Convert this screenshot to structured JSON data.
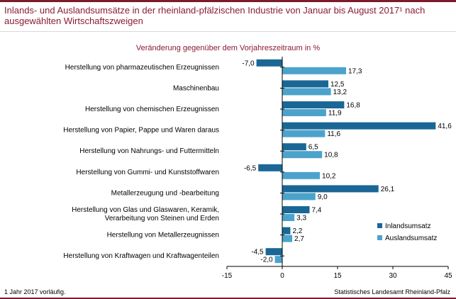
{
  "title": "Inlands- und Auslandsumsätze in der rheinland-pfälzischen Industrie von Januar bis August 2017¹ nach ausgewählten Wirtschaftszweigen",
  "footnote": "1 Jahr 2017 vorläufig.",
  "source": "Statistisches Landesamt Rheinland-Pfalz",
  "colors": {
    "title": "#8b1a33",
    "inland": "#1a6796",
    "ausland": "#4ba3cc"
  },
  "chart_data": {
    "type": "bar",
    "orientation": "horizontal",
    "subtitle": "Veränderung gegenüber dem Vorjahreszeitraum in %",
    "categories": [
      "Herstellung von pharmazeutischen Erzeugnissen",
      "Maschinenbau",
      "Herstellung von chemischen Erzeugnissen",
      "Herstellung von Papier, Pappe und Waren daraus",
      "Herstellung von Nahrungs- und Futtermitteln",
      "Herstellung von Gummi- und Kunststoffwaren",
      "Metallerzeugung und -bearbeitung",
      "Herstellung von Glas und Glaswaren, Keramik, Verarbeitung von Steinen und Erden",
      "Herstellung von Metallerzeugnissen",
      "Herstellung von Kraftwagen und Kraftwagenteilen"
    ],
    "series": [
      {
        "name": "Inlandsumsatz",
        "values": [
          -7.0,
          12.5,
          16.8,
          41.6,
          6.5,
          -6.5,
          26.1,
          7.4,
          2.2,
          -4.5
        ],
        "labels": [
          "-7,0",
          "12,5",
          "16,8",
          "41,6",
          "6,5",
          "-6,5",
          "26,1",
          "7,4",
          "2,2",
          "-4,5"
        ]
      },
      {
        "name": "Auslandsumsatz",
        "values": [
          17.3,
          13.2,
          11.9,
          11.6,
          10.8,
          10.2,
          9.0,
          3.3,
          2.7,
          -2.0
        ],
        "labels": [
          "17,3",
          "13,2",
          "11,9",
          "11,6",
          "10,8",
          "10,2",
          "9,0",
          "3,3",
          "2,7",
          "-2,0"
        ]
      }
    ],
    "xlim": [
      -15,
      45
    ],
    "xticks": [
      -15,
      0,
      15,
      30,
      45
    ],
    "legend": "bottom-right",
    "grid": false
  }
}
